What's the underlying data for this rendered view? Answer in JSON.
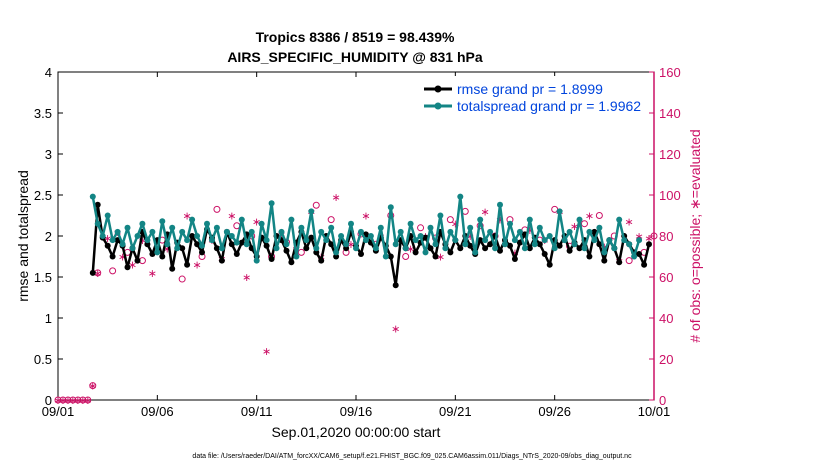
{
  "chart_data": {
    "type": "line",
    "title_line1": "Tropics 8386 / 8519 = 98.439%",
    "title_line2": "AIRS_SPECIFIC_HUMIDITY @ 831 hPa",
    "xlabel": "Sep.01,2020 00:00:00 start",
    "ylabel": "rmse and totalspread",
    "ylabel_right": "# of obs: o=possible; ∗=evaluated",
    "xlim": [
      0,
      30
    ],
    "ylim": [
      0,
      4
    ],
    "ylim_right": [
      0,
      160
    ],
    "x_ticks": [
      0,
      5,
      10,
      15,
      20,
      25,
      30
    ],
    "x_tick_labels": [
      "09/01",
      "09/06",
      "09/11",
      "09/16",
      "09/21",
      "09/26",
      "10/01"
    ],
    "y_ticks": [
      0,
      0.5,
      1,
      1.5,
      2,
      2.5,
      3,
      3.5,
      4
    ],
    "y_tick_labels": [
      "0",
      "0.5",
      "1",
      "1.5",
      "2",
      "2.5",
      "3",
      "3.5",
      "4"
    ],
    "y_ticks_right": [
      0,
      20,
      40,
      60,
      80,
      100,
      120,
      140,
      160
    ],
    "y_tick_labels_right": [
      "0",
      "20",
      "40",
      "60",
      "80",
      "100",
      "120",
      "140",
      "160"
    ],
    "legend": [
      "rmse grand pr = 1.8999",
      "totalspread grand pr = 1.9962"
    ],
    "legend_placement": "top-right",
    "series": [
      {
        "name": "rmse",
        "color": "#000000",
        "x0": 1.75,
        "dx": 0.25,
        "values": [
          1.55,
          2.38,
          1.98,
          1.88,
          1.75,
          1.95,
          1.88,
          1.62,
          1.85,
          1.7,
          2.05,
          1.9,
          1.78,
          1.95,
          1.75,
          2.02,
          1.6,
          1.92,
          1.85,
          1.65,
          2.0,
          1.9,
          1.8,
          2.08,
          1.98,
          1.85,
          1.7,
          2.05,
          1.9,
          1.78,
          1.92,
          2.02,
          1.85,
          1.75,
          1.98,
          1.88,
          1.72,
          2.0,
          1.95,
          1.82,
          1.68,
          1.92,
          2.05,
          1.85,
          1.98,
          1.8,
          1.7,
          2.0,
          1.9,
          1.75,
          1.95,
          1.85,
          2.05,
          1.88,
          1.78,
          2.02,
          1.92,
          1.82,
          1.98,
          1.88,
          1.75,
          1.4,
          1.95,
          1.85,
          2.0,
          1.8,
          1.92,
          1.98,
          1.85,
          1.75,
          2.05,
          1.9,
          1.8,
          1.95,
          1.85,
          2.0,
          1.88,
          1.78,
          1.95,
          1.85,
          1.9,
          2.0,
          1.82,
          1.95,
          1.88,
          1.72,
          1.92,
          2.02,
          1.85,
          1.98,
          1.9,
          1.78,
          1.65,
          1.95,
          1.88,
          2.0,
          1.82,
          1.92,
          1.85,
          1.95,
          1.75,
          2.05,
          1.9,
          1.7,
          1.95,
          1.85,
          1.68,
          2.0,
          1.9,
          1.8,
          1.78,
          1.65,
          1.9
        ]
      },
      {
        "name": "totalspread",
        "color": "#138585",
        "x0": 1.75,
        "dx": 0.25,
        "values": [
          2.48,
          2.15,
          2.0,
          2.25,
          1.95,
          2.05,
          1.9,
          2.1,
          1.85,
          2.0,
          2.15,
          1.95,
          2.05,
          1.8,
          2.18,
          1.9,
          2.1,
          1.85,
          2.05,
          1.95,
          2.2,
          2.0,
          1.88,
          2.15,
          1.95,
          2.1,
          1.85,
          2.05,
          2.0,
          1.92,
          2.2,
          1.9,
          2.05,
          1.7,
          2.15,
          1.95,
          2.4,
          1.85,
          2.05,
          1.9,
          2.2,
          1.75,
          2.1,
          1.95,
          2.3,
          1.85,
          2.05,
          1.95,
          2.1,
          1.8,
          2.0,
          1.9,
          2.15,
          1.85,
          2.05,
          1.95,
          2.0,
          1.85,
          2.1,
          1.75,
          2.35,
          1.9,
          2.05,
          1.85,
          2.15,
          1.95,
          2.0,
          1.8,
          2.1,
          1.9,
          2.25,
          1.85,
          2.05,
          1.95,
          2.48,
          1.9,
          2.1,
          1.8,
          2.2,
          1.95,
          2.05,
          1.85,
          2.38,
          1.9,
          2.15,
          1.95,
          2.05,
          1.85,
          2.2,
          1.9,
          2.1,
          1.95,
          2.0,
          1.85,
          2.3,
          1.95,
          2.05,
          1.9,
          2.2,
          1.85,
          2.05,
          1.95,
          2.1,
          1.8,
          1.95,
          1.85,
          2.2,
          1.95,
          1.9,
          1.75,
          1.95
        ]
      }
    ],
    "obs_possible": {
      "color": "#cc1166",
      "marker": "o",
      "x": [
        0,
        0.25,
        0.5,
        0.75,
        1,
        1.25,
        1.5,
        1.75,
        2,
        2.75,
        3.5,
        4.25,
        5.25,
        6.25,
        7.25,
        8,
        9,
        9.75,
        10.75,
        11.5,
        12.25,
        13,
        13.75,
        14.5,
        15.25,
        16,
        16.75,
        17.5,
        18.25,
        19,
        19.75,
        20.5,
        21.25,
        22,
        22.75,
        23.5,
        24.25,
        25,
        25.75,
        26.5,
        27.25,
        28,
        28.75,
        29.5,
        30
      ],
      "y": [
        0,
        0,
        0,
        0,
        0,
        0,
        0,
        7,
        62,
        63,
        72,
        68,
        78,
        59,
        70,
        93,
        85,
        80,
        70,
        77,
        72,
        95,
        88,
        72,
        81,
        76,
        90,
        70,
        84,
        79,
        88,
        92,
        85,
        80,
        88,
        83,
        78,
        93,
        75,
        86,
        90,
        80,
        68,
        72,
        80
      ]
    },
    "obs_evaluated": {
      "color": "#cc1166",
      "marker": "*",
      "x": [
        0,
        0.25,
        0.5,
        0.75,
        1,
        1.25,
        1.5,
        1.75,
        2,
        2.5,
        3,
        3.25,
        3.75,
        4.25,
        4.75,
        5.5,
        6.5,
        7,
        7.75,
        8.25,
        8.75,
        9.5,
        10,
        10.5,
        11.25,
        12,
        12.75,
        13.25,
        14,
        14.75,
        15.5,
        16.25,
        17,
        17.75,
        18.5,
        19.25,
        20,
        20.75,
        21.5,
        22.25,
        23,
        23.75,
        24.5,
        25.25,
        26,
        26.75,
        27.5,
        28.25,
        28.75,
        29.25,
        29.75
      ],
      "y": [
        0,
        0,
        0,
        0,
        0,
        0,
        0,
        7,
        62,
        79,
        82,
        70,
        66,
        78,
        62,
        74,
        90,
        66,
        78,
        69,
        90,
        60,
        87,
        24,
        81,
        74,
        92,
        70,
        99,
        76,
        90,
        80,
        35,
        74,
        80,
        70,
        86,
        80,
        92,
        88,
        72,
        83,
        78,
        92,
        85,
        90,
        75,
        68,
        87,
        80,
        79
      ]
    }
  },
  "footer": "data file: /Users/raeder/DAI/ATM_forcXX/CAM6_setup/f.e21.FHIST_BGC.f09_025.CAM6assim.011/Diags_NTrS_2020-09/obs_diag_output.nc"
}
